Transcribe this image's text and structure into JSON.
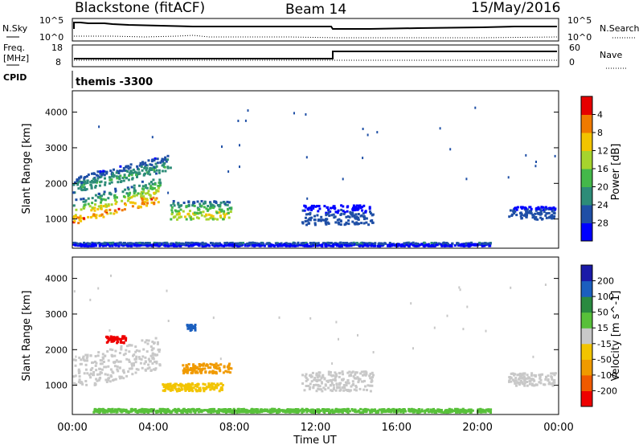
{
  "header": {
    "station": "Blackstone (fitACF)",
    "beam": "Beam 14",
    "date": "15/May/2016"
  },
  "noise_panel": {
    "left_label": "N.Sky",
    "right_label": "N.Search",
    "left_ticks": [
      "10^5",
      "10^0"
    ],
    "right_ticks": [
      "10^5",
      "10^0"
    ]
  },
  "freq_panel": {
    "left_label": "Freq.",
    "left_unit": "[MHz]",
    "right_label": "Nave",
    "left_ticks": [
      "18",
      "8"
    ],
    "right_ticks": [
      "60",
      "0"
    ],
    "cpid_label": "CPID",
    "program": "themis -3300"
  },
  "time_axis": {
    "label": "Time UT",
    "ticks": [
      "00:00",
      "04:00",
      "08:00",
      "12:00",
      "16:00",
      "20:00",
      "00:00"
    ]
  },
  "colors": {
    "power": [
      "#0000ff",
      "#1f4fa6",
      "#2d8c78",
      "#44b84a",
      "#a6d42d",
      "#f2c400",
      "#f07a00",
      "#e60000"
    ],
    "velocity": [
      "#ee0000",
      "#f05a00",
      "#f09a00",
      "#f2c400",
      "#c8c8c8",
      "#58c03a",
      "#2a8a40",
      "#1b5fbf",
      "#1a1aa8"
    ]
  },
  "chart_data": [
    {
      "type": "heatmap",
      "panel": "power",
      "xlabel": "",
      "ylabel": "Slant Range [km]",
      "xlim": [
        0,
        24
      ],
      "ylim": [
        180,
        4600
      ],
      "yticks": [
        "1000",
        "2000",
        "3000",
        "4000"
      ],
      "colorbar": {
        "label": "Power [dB]",
        "ticks": [
          "4",
          "8",
          "12",
          "16",
          "20",
          "24",
          "28"
        ],
        "range": [
          0,
          32
        ]
      },
      "features": [
        {
          "name": "main band",
          "t_start": 0.0,
          "t_end": 4.3,
          "range_start": 800,
          "range_end": 2100,
          "peak_power": 30
        },
        {
          "name": "upper band",
          "t_start": 0.0,
          "t_end": 4.8,
          "range_start": 1700,
          "range_end": 2500,
          "peak_power": 14
        },
        {
          "name": "patch 06h",
          "t_start": 4.8,
          "t_end": 7.8,
          "range_start": 950,
          "range_end": 1900,
          "peak_power": 24
        },
        {
          "name": "midday echoes",
          "t_start": 11.3,
          "t_end": 14.8,
          "range_start": 800,
          "range_end": 1800,
          "peak_power": 8
        },
        {
          "name": "late echoes",
          "t_start": 21.5,
          "t_end": 23.8,
          "range_start": 950,
          "range_end": 1600,
          "peak_power": 8
        },
        {
          "name": "ground scatter strip",
          "t_start": 0.0,
          "t_end": 20.6,
          "range_start": 200,
          "range_end": 380,
          "peak_power": 12
        }
      ]
    },
    {
      "type": "heatmap",
      "panel": "velocity",
      "xlabel": "Time UT",
      "ylabel": "Slant Range [km]",
      "xlim": [
        0,
        24
      ],
      "ylim": [
        180,
        4600
      ],
      "yticks": [
        "1000",
        "2000",
        "3000",
        "4000"
      ],
      "colorbar": {
        "label": "Velocity [m s^-1]",
        "ticks": [
          "200",
          "100",
          "50",
          "15",
          "-15",
          "-50",
          "-100",
          "-200"
        ]
      },
      "features": [
        {
          "name": "low-velocity band",
          "t_start": 0.0,
          "t_end": 4.3,
          "range_start": 800,
          "range_end": 2500,
          "velocity": 0
        },
        {
          "name": "red patch",
          "t_start": 1.6,
          "t_end": 2.6,
          "range_start": 2150,
          "range_end": 2500,
          "velocity": -220
        },
        {
          "name": "orange patch",
          "t_start": 5.4,
          "t_end": 7.8,
          "range_start": 1300,
          "range_end": 1800,
          "velocity": -90
        },
        {
          "name": "negative band",
          "t_start": 4.4,
          "t_end": 7.4,
          "range_start": 800,
          "range_end": 1200,
          "velocity": -40
        },
        {
          "name": "blue patch",
          "t_start": 5.6,
          "t_end": 6.1,
          "range_start": 2500,
          "range_end": 2800,
          "velocity": 180
        },
        {
          "name": "midday gray echoes",
          "t_start": 11.3,
          "t_end": 14.8,
          "range_start": 800,
          "range_end": 1800,
          "velocity": 0
        },
        {
          "name": "green ground strip",
          "t_start": 1.0,
          "t_end": 20.6,
          "range_start": 200,
          "range_end": 380,
          "velocity": 40
        },
        {
          "name": "late gray echoes",
          "t_start": 21.5,
          "t_end": 23.8,
          "range_start": 950,
          "range_end": 1600,
          "velocity": 0
        }
      ]
    }
  ]
}
